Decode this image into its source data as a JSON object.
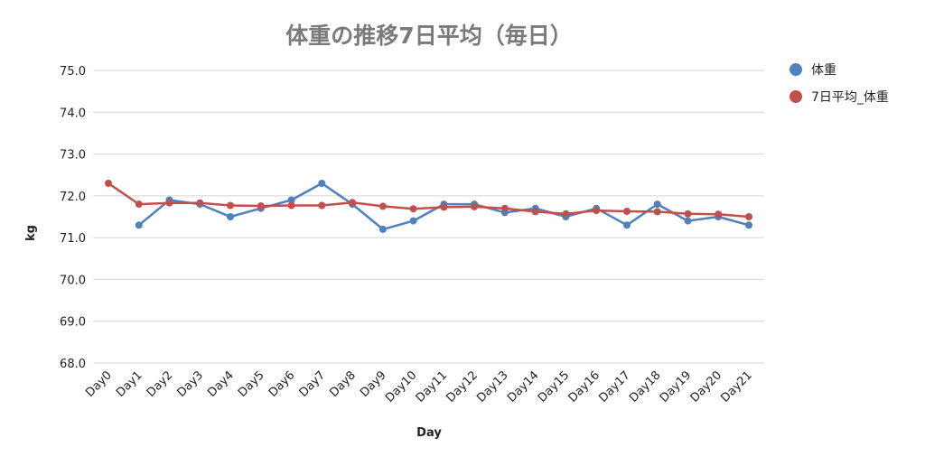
{
  "chart_data": {
    "type": "line",
    "title": "体重の推移7日平均（毎日）",
    "xlabel": "Day",
    "ylabel": "kg",
    "ylim": [
      68.0,
      75.0
    ],
    "yticks": [
      "75.0",
      "74.0",
      "73.0",
      "72.0",
      "71.0",
      "70.0",
      "69.0",
      "68.0"
    ],
    "grid": true,
    "legend_position": "right",
    "categories": [
      "Day0",
      "Day1",
      "Day2",
      "Day3",
      "Day4",
      "Day5",
      "Day6",
      "Day7",
      "Day8",
      "Day9",
      "Day10",
      "Day11",
      "Day12",
      "Day13",
      "Day14",
      "Day15",
      "Day16",
      "Day17",
      "Day18",
      "Day19",
      "Day20",
      "Day21"
    ],
    "series": [
      {
        "name": "体重",
        "color": "#4f81bd",
        "values": [
          null,
          71.3,
          71.9,
          71.8,
          71.5,
          71.7,
          71.9,
          72.3,
          71.8,
          71.2,
          71.4,
          71.8,
          71.8,
          71.6,
          71.7,
          71.5,
          71.7,
          71.3,
          71.8,
          71.4,
          71.5,
          71.3
        ]
      },
      {
        "name": "7日平均_体重",
        "color": "#c0504d",
        "values": [
          72.3,
          71.8,
          71.83,
          71.83,
          71.77,
          71.76,
          71.77,
          71.77,
          71.84,
          71.75,
          71.69,
          71.73,
          71.74,
          71.7,
          71.62,
          71.57,
          71.65,
          71.63,
          71.62,
          71.57,
          71.56,
          71.5
        ]
      }
    ]
  }
}
